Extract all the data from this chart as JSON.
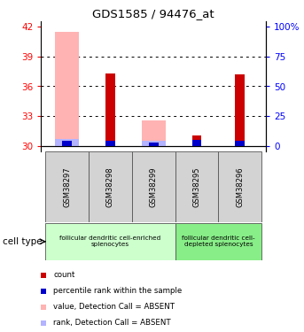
{
  "title": "GDS1585 / 94476_at",
  "samples": [
    "GSM38297",
    "GSM38298",
    "GSM38299",
    "GSM38295",
    "GSM38296"
  ],
  "ylim_left": [
    29.5,
    42.5
  ],
  "yticks_left": [
    30,
    33,
    36,
    39,
    42
  ],
  "ytick_labels_left": [
    "30",
    "33",
    "36",
    "39",
    "42"
  ],
  "ytick_labels_right": [
    "0",
    "25",
    "50",
    "75",
    "100%"
  ],
  "bar_bottom": 30.0,
  "count_values": [
    30.35,
    37.3,
    30.2,
    31.05,
    37.2
  ],
  "rank_values": [
    30.55,
    30.55,
    30.4,
    30.65,
    30.55
  ],
  "pink_value_values": [
    41.5,
    0,
    32.6,
    0,
    0
  ],
  "pink_rank_values": [
    30.7,
    0,
    30.5,
    0,
    0
  ],
  "count_color": "#cc0000",
  "rank_color": "#0000cc",
  "pink_value_color": "#ffb3b3",
  "pink_rank_color": "#b3b3ff",
  "wide_bar_width": 0.55,
  "narrow_bar_width": 0.22,
  "group1_samples": [
    0,
    1,
    2
  ],
  "group2_samples": [
    3,
    4
  ],
  "group1_label": "follicular dendritic cell-enriched\nsplenocytes",
  "group2_label": "follicular dendritic cell-\ndepleted splenocytes",
  "group1_color": "#ccffcc",
  "group2_color": "#88ee88",
  "cell_type_label": "cell type",
  "legend_items": [
    {
      "label": "count",
      "color": "#cc0000"
    },
    {
      "label": "percentile rank within the sample",
      "color": "#0000cc"
    },
    {
      "label": "value, Detection Call = ABSENT",
      "color": "#ffb3b3"
    },
    {
      "label": "rank, Detection Call = ABSENT",
      "color": "#b3b3ff"
    }
  ]
}
